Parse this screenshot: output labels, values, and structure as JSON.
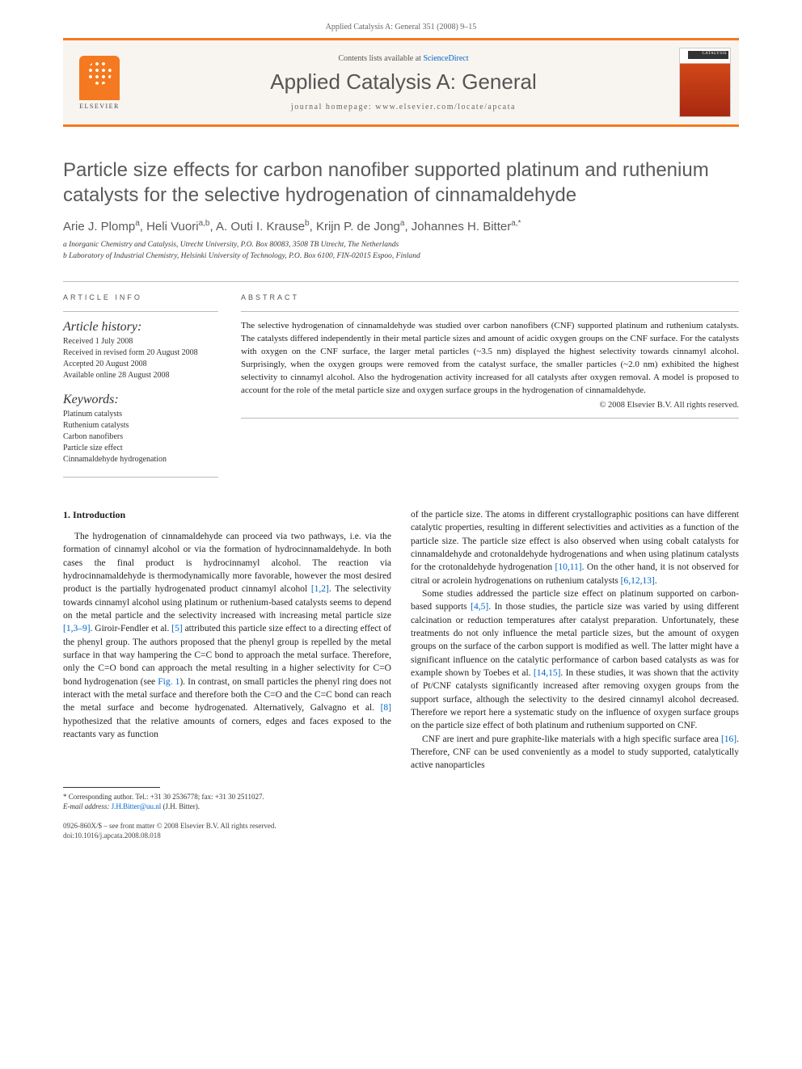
{
  "header": {
    "citation": "Applied Catalysis A: General 351 (2008) 9–15"
  },
  "banner": {
    "contents_prefix": "Contents lists available at ",
    "contents_link": "ScienceDirect",
    "journal": "Applied Catalysis A: General",
    "homepage_prefix": "journal homepage: ",
    "homepage_url": "www.elsevier.com/locate/apcata",
    "publisher": "ELSEVIER"
  },
  "article": {
    "title": "Particle size effects for carbon nanofiber supported platinum and ruthenium catalysts for the selective hydrogenation of cinnamaldehyde",
    "authors_html": "Arie J. Plomp<sup>a</sup>, Heli Vuori<sup>a,b</sup>, A. Outi I. Krause<sup>b</sup>, Krijn P. de Jong<sup>a</sup>, Johannes H. Bitter<sup>a,*</sup>",
    "affiliations": [
      "a Inorganic Chemistry and Catalysis, Utrecht University, P.O. Box 80083, 3508 TB Utrecht, The Netherlands",
      "b Laboratory of Industrial Chemistry, Helsinki University of Technology, P.O. Box 6100, FIN-02015 Espoo, Finland"
    ]
  },
  "info": {
    "heading": "ARTICLE INFO",
    "history_label": "Article history:",
    "history": [
      "Received 1 July 2008",
      "Received in revised form 20 August 2008",
      "Accepted 20 August 2008",
      "Available online 28 August 2008"
    ],
    "keywords_label": "Keywords:",
    "keywords": [
      "Platinum catalysts",
      "Ruthenium catalysts",
      "Carbon nanofibers",
      "Particle size effect",
      "Cinnamaldehyde hydrogenation"
    ]
  },
  "abstract": {
    "heading": "ABSTRACT",
    "text": "The selective hydrogenation of cinnamaldehyde was studied over carbon nanofibers (CNF) supported platinum and ruthenium catalysts. The catalysts differed independently in their metal particle sizes and amount of acidic oxygen groups on the CNF surface. For the catalysts with oxygen on the CNF surface, the larger metal particles (~3.5 nm) displayed the highest selectivity towards cinnamyl alcohol. Surprisingly, when the oxygen groups were removed from the catalyst surface, the smaller particles (~2.0 nm) exhibited the highest selectivity to cinnamyl alcohol. Also the hydrogenation activity increased for all catalysts after oxygen removal. A model is proposed to account for the role of the metal particle size and oxygen surface groups in the hydrogenation of cinnamaldehyde.",
    "copyright": "© 2008 Elsevier B.V. All rights reserved."
  },
  "body": {
    "section_heading": "1. Introduction",
    "col1_p1": "The hydrogenation of cinnamaldehyde can proceed via two pathways, i.e. via the formation of cinnamyl alcohol or via the formation of hydrocinnamaldehyde. In both cases the final product is hydrocinnamyl alcohol. The reaction via hydrocinnamaldehyde is thermodynamically more favorable, however the most desired product is the partially hydrogenated product cinnamyl alcohol [1,2]. The selectivity towards cinnamyl alcohol using platinum or ruthenium-based catalysts seems to depend on the metal particle and the selectivity increased with increasing metal particle size [1,3–9]. Giroir-Fendler et al. [5] attributed this particle size effect to a directing effect of the phenyl group. The authors proposed that the phenyl group is repelled by the metal surface in that way hampering the C=C bond to approach the metal surface. Therefore, only the C=O bond can approach the metal resulting in a higher selectivity for C=O bond hydrogenation (see Fig. 1). In contrast, on small particles the phenyl ring does not interact with the metal surface and therefore both the C=O and the C=C bond can reach the metal surface and become hydrogenated. Alternatively, Galvagno et al. [8] hypothesized that the relative amounts of corners, edges and faces exposed to the reactants vary as function",
    "col2_p1": "of the particle size. The atoms in different crystallographic positions can have different catalytic properties, resulting in different selectivities and activities as a function of the particle size. The particle size effect is also observed when using cobalt catalysts for cinnamaldehyde and crotonaldehyde hydrogenations and when using platinum catalysts for the crotonaldehyde hydrogenation [10,11]. On the other hand, it is not observed for citral or acrolein hydrogenations on ruthenium catalysts [6,12,13].",
    "col2_p2": "Some studies addressed the particle size effect on platinum supported on carbon-based supports [4,5]. In those studies, the particle size was varied by using different calcination or reduction temperatures after catalyst preparation. Unfortunately, these treatments do not only influence the metal particle sizes, but the amount of oxygen groups on the surface of the carbon support is modified as well. The latter might have a significant influence on the catalytic performance of carbon based catalysts as was for example shown by Toebes et al. [14,15]. In these studies, it was shown that the activity of Pt/CNF catalysts significantly increased after removing oxygen groups from the support surface, although the selectivity to the desired cinnamyl alcohol decreased. Therefore we report here a systematic study on the influence of oxygen surface groups on the particle size effect of both platinum and ruthenium supported on CNF.",
    "col2_p3": "CNF are inert and pure graphite-like materials with a high specific surface area [16]. Therefore, CNF can be used conveniently as a model to study supported, catalytically active nanoparticles"
  },
  "footer": {
    "corr": "* Corresponding author. Tel.: +31 30 2536778; fax: +31 30 2511027.",
    "email_label": "E-mail address:",
    "email": "J.H.Bitter@uu.nl",
    "email_name": "(J.H. Bitter).",
    "issn": "0926-860X/$ – see front matter © 2008 Elsevier B.V. All rights reserved.",
    "doi": "doi:10.1016/j.apcata.2008.08.018"
  },
  "colors": {
    "accent": "#f47920",
    "link": "#0066cc",
    "text_gray": "#5a5a5a"
  }
}
